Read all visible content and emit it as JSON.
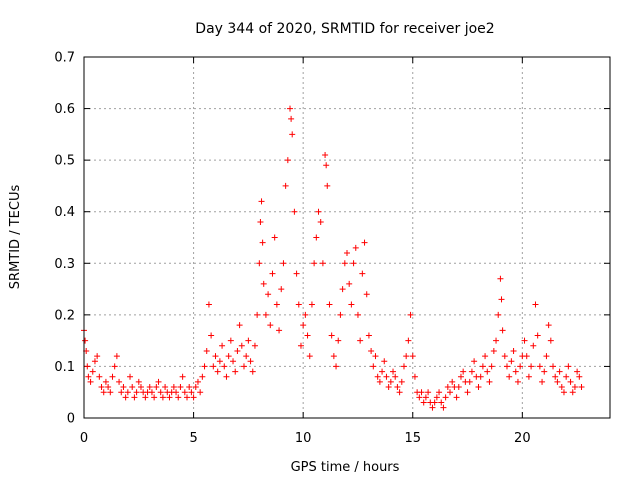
{
  "chart_data": {
    "type": "scatter",
    "title": "Day 344 of 2020, SRMTID for receiver joe2",
    "xlabel": "GPS time / hours",
    "ylabel": "SRMTID / TECUs",
    "xlim": [
      0,
      24
    ],
    "ylim": [
      0,
      0.7
    ],
    "xticks": [
      0,
      5,
      10,
      15,
      20
    ],
    "yticks": [
      0,
      0.1,
      0.2,
      0.3,
      0.4,
      0.5,
      0.6,
      0.7
    ],
    "x_tick_labels": [
      "0",
      "5",
      "10",
      "15",
      "20"
    ],
    "y_tick_labels": [
      "0",
      "0.1",
      "0.2",
      "0.3",
      "0.4",
      "0.5",
      "0.6",
      "0.7"
    ],
    "grid": true,
    "marker": "+",
    "color": "#ff0000",
    "series": [
      {
        "name": "SRMTID",
        "points": [
          [
            0.0,
            0.17
          ],
          [
            0.05,
            0.15
          ],
          [
            0.1,
            0.13
          ],
          [
            0.15,
            0.1
          ],
          [
            0.2,
            0.08
          ],
          [
            0.3,
            0.07
          ],
          [
            0.4,
            0.09
          ],
          [
            0.5,
            0.11
          ],
          [
            0.6,
            0.12
          ],
          [
            0.7,
            0.08
          ],
          [
            0.8,
            0.06
          ],
          [
            0.9,
            0.05
          ],
          [
            1.0,
            0.07
          ],
          [
            1.1,
            0.06
          ],
          [
            1.2,
            0.05
          ],
          [
            1.3,
            0.08
          ],
          [
            1.4,
            0.1
          ],
          [
            1.5,
            0.12
          ],
          [
            1.6,
            0.07
          ],
          [
            1.7,
            0.05
          ],
          [
            1.8,
            0.06
          ],
          [
            1.9,
            0.04
          ],
          [
            2.0,
            0.05
          ],
          [
            2.1,
            0.08
          ],
          [
            2.2,
            0.06
          ],
          [
            2.3,
            0.04
          ],
          [
            2.4,
            0.05
          ],
          [
            2.5,
            0.07
          ],
          [
            2.6,
            0.06
          ],
          [
            2.7,
            0.05
          ],
          [
            2.8,
            0.04
          ],
          [
            2.9,
            0.05
          ],
          [
            3.0,
            0.06
          ],
          [
            3.1,
            0.05
          ],
          [
            3.2,
            0.04
          ],
          [
            3.3,
            0.06
          ],
          [
            3.4,
            0.07
          ],
          [
            3.5,
            0.05
          ],
          [
            3.6,
            0.04
          ],
          [
            3.7,
            0.06
          ],
          [
            3.8,
            0.05
          ],
          [
            3.9,
            0.04
          ],
          [
            4.0,
            0.05
          ],
          [
            4.1,
            0.06
          ],
          [
            4.2,
            0.05
          ],
          [
            4.3,
            0.04
          ],
          [
            4.4,
            0.06
          ],
          [
            4.5,
            0.08
          ],
          [
            4.6,
            0.05
          ],
          [
            4.7,
            0.04
          ],
          [
            4.8,
            0.06
          ],
          [
            4.9,
            0.05
          ],
          [
            5.0,
            0.04
          ],
          [
            5.1,
            0.06
          ],
          [
            5.2,
            0.07
          ],
          [
            5.3,
            0.05
          ],
          [
            5.4,
            0.08
          ],
          [
            5.5,
            0.1
          ],
          [
            5.6,
            0.13
          ],
          [
            5.7,
            0.22
          ],
          [
            5.8,
            0.16
          ],
          [
            5.9,
            0.1
          ],
          [
            6.0,
            0.12
          ],
          [
            6.1,
            0.09
          ],
          [
            6.2,
            0.11
          ],
          [
            6.3,
            0.14
          ],
          [
            6.4,
            0.1
          ],
          [
            6.5,
            0.08
          ],
          [
            6.6,
            0.12
          ],
          [
            6.7,
            0.15
          ],
          [
            6.8,
            0.11
          ],
          [
            6.9,
            0.09
          ],
          [
            7.0,
            0.13
          ],
          [
            7.1,
            0.18
          ],
          [
            7.2,
            0.14
          ],
          [
            7.3,
            0.1
          ],
          [
            7.4,
            0.12
          ],
          [
            7.5,
            0.15
          ],
          [
            7.6,
            0.11
          ],
          [
            7.7,
            0.09
          ],
          [
            7.8,
            0.14
          ],
          [
            7.9,
            0.2
          ],
          [
            8.0,
            0.3
          ],
          [
            8.05,
            0.38
          ],
          [
            8.1,
            0.42
          ],
          [
            8.15,
            0.34
          ],
          [
            8.2,
            0.26
          ],
          [
            8.3,
            0.2
          ],
          [
            8.4,
            0.24
          ],
          [
            8.5,
            0.18
          ],
          [
            8.6,
            0.28
          ],
          [
            8.7,
            0.35
          ],
          [
            8.8,
            0.22
          ],
          [
            8.9,
            0.17
          ],
          [
            9.0,
            0.25
          ],
          [
            9.1,
            0.3
          ],
          [
            9.2,
            0.45
          ],
          [
            9.3,
            0.5
          ],
          [
            9.4,
            0.6
          ],
          [
            9.45,
            0.58
          ],
          [
            9.5,
            0.55
          ],
          [
            9.6,
            0.4
          ],
          [
            9.7,
            0.28
          ],
          [
            9.8,
            0.22
          ],
          [
            9.9,
            0.14
          ],
          [
            10.0,
            0.18
          ],
          [
            10.1,
            0.2
          ],
          [
            10.2,
            0.16
          ],
          [
            10.3,
            0.12
          ],
          [
            10.4,
            0.22
          ],
          [
            10.5,
            0.3
          ],
          [
            10.6,
            0.35
          ],
          [
            10.7,
            0.4
          ],
          [
            10.8,
            0.38
          ],
          [
            10.9,
            0.3
          ],
          [
            11.0,
            0.51
          ],
          [
            11.05,
            0.49
          ],
          [
            11.1,
            0.45
          ],
          [
            11.2,
            0.22
          ],
          [
            11.3,
            0.16
          ],
          [
            11.4,
            0.12
          ],
          [
            11.5,
            0.1
          ],
          [
            11.6,
            0.15
          ],
          [
            11.7,
            0.2
          ],
          [
            11.8,
            0.25
          ],
          [
            11.9,
            0.3
          ],
          [
            12.0,
            0.32
          ],
          [
            12.1,
            0.26
          ],
          [
            12.2,
            0.22
          ],
          [
            12.3,
            0.3
          ],
          [
            12.4,
            0.33
          ],
          [
            12.5,
            0.2
          ],
          [
            12.6,
            0.15
          ],
          [
            12.7,
            0.28
          ],
          [
            12.8,
            0.34
          ],
          [
            12.9,
            0.24
          ],
          [
            13.0,
            0.16
          ],
          [
            13.1,
            0.13
          ],
          [
            13.2,
            0.1
          ],
          [
            13.3,
            0.12
          ],
          [
            13.4,
            0.08
          ],
          [
            13.5,
            0.07
          ],
          [
            13.6,
            0.09
          ],
          [
            13.7,
            0.11
          ],
          [
            13.8,
            0.08
          ],
          [
            13.9,
            0.06
          ],
          [
            14.0,
            0.07
          ],
          [
            14.1,
            0.09
          ],
          [
            14.2,
            0.08
          ],
          [
            14.3,
            0.06
          ],
          [
            14.4,
            0.05
          ],
          [
            14.5,
            0.07
          ],
          [
            14.6,
            0.1
          ],
          [
            14.7,
            0.12
          ],
          [
            14.8,
            0.15
          ],
          [
            14.9,
            0.2
          ],
          [
            15.0,
            0.12
          ],
          [
            15.1,
            0.08
          ],
          [
            15.2,
            0.05
          ],
          [
            15.3,
            0.04
          ],
          [
            15.4,
            0.05
          ],
          [
            15.5,
            0.03
          ],
          [
            15.6,
            0.04
          ],
          [
            15.7,
            0.05
          ],
          [
            15.8,
            0.03
          ],
          [
            15.9,
            0.02
          ],
          [
            16.0,
            0.03
          ],
          [
            16.1,
            0.04
          ],
          [
            16.2,
            0.05
          ],
          [
            16.3,
            0.03
          ],
          [
            16.4,
            0.02
          ],
          [
            16.5,
            0.04
          ],
          [
            16.6,
            0.06
          ],
          [
            16.7,
            0.05
          ],
          [
            16.8,
            0.07
          ],
          [
            16.9,
            0.06
          ],
          [
            17.0,
            0.04
          ],
          [
            17.1,
            0.06
          ],
          [
            17.2,
            0.08
          ],
          [
            17.3,
            0.09
          ],
          [
            17.4,
            0.07
          ],
          [
            17.5,
            0.05
          ],
          [
            17.6,
            0.07
          ],
          [
            17.7,
            0.09
          ],
          [
            17.8,
            0.11
          ],
          [
            17.9,
            0.08
          ],
          [
            18.0,
            0.06
          ],
          [
            18.1,
            0.08
          ],
          [
            18.2,
            0.1
          ],
          [
            18.3,
            0.12
          ],
          [
            18.4,
            0.09
          ],
          [
            18.5,
            0.07
          ],
          [
            18.6,
            0.1
          ],
          [
            18.7,
            0.13
          ],
          [
            18.8,
            0.15
          ],
          [
            18.9,
            0.2
          ],
          [
            19.0,
            0.27
          ],
          [
            19.05,
            0.23
          ],
          [
            19.1,
            0.17
          ],
          [
            19.2,
            0.12
          ],
          [
            19.3,
            0.1
          ],
          [
            19.4,
            0.08
          ],
          [
            19.5,
            0.11
          ],
          [
            19.6,
            0.13
          ],
          [
            19.7,
            0.09
          ],
          [
            19.8,
            0.07
          ],
          [
            19.9,
            0.1
          ],
          [
            20.0,
            0.12
          ],
          [
            20.1,
            0.15
          ],
          [
            20.2,
            0.12
          ],
          [
            20.3,
            0.08
          ],
          [
            20.4,
            0.1
          ],
          [
            20.5,
            0.14
          ],
          [
            20.6,
            0.22
          ],
          [
            20.7,
            0.16
          ],
          [
            20.8,
            0.1
          ],
          [
            20.9,
            0.07
          ],
          [
            21.0,
            0.09
          ],
          [
            21.1,
            0.12
          ],
          [
            21.2,
            0.18
          ],
          [
            21.3,
            0.15
          ],
          [
            21.4,
            0.1
          ],
          [
            21.5,
            0.08
          ],
          [
            21.6,
            0.07
          ],
          [
            21.7,
            0.09
          ],
          [
            21.8,
            0.06
          ],
          [
            21.9,
            0.05
          ],
          [
            22.0,
            0.08
          ],
          [
            22.1,
            0.1
          ],
          [
            22.2,
            0.07
          ],
          [
            22.3,
            0.05
          ],
          [
            22.4,
            0.06
          ],
          [
            22.5,
            0.09
          ],
          [
            22.6,
            0.08
          ],
          [
            22.7,
            0.06
          ]
        ]
      }
    ]
  }
}
